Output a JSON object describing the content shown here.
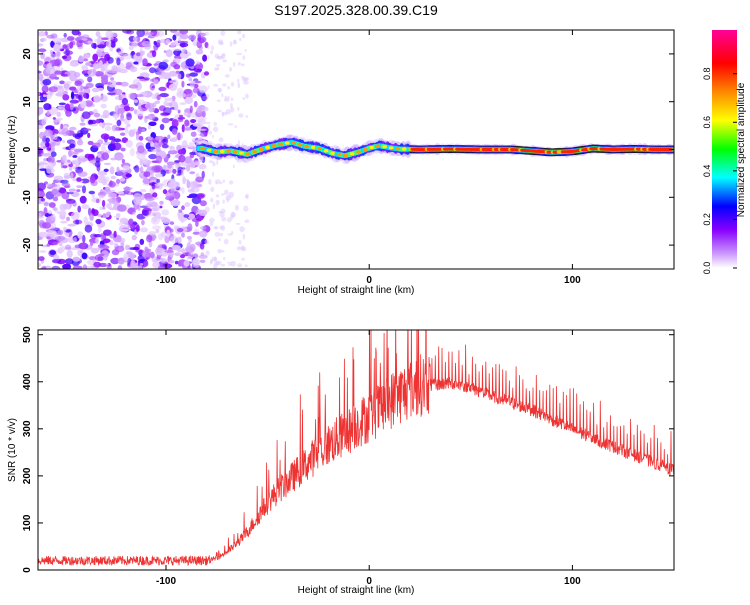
{
  "title": "S197.2025.328.00.39.C19",
  "chart_data": [
    {
      "type": "heatmap",
      "title": "S197.2025.328.00.39.C19",
      "xlabel": "Height of straight line (km)",
      "ylabel": "Frequency (Hz)",
      "xlim": [
        -163,
        150
      ],
      "ylim": [
        -25,
        25
      ],
      "xticks": [
        -100,
        0,
        100
      ],
      "yticks": [
        -20,
        -10,
        0,
        10,
        20
      ],
      "colorbar": {
        "label": "Normalized spectral amplitude",
        "range": [
          0,
          0.98
        ],
        "ticks": [
          0.0,
          0.2,
          0.4,
          0.6,
          0.8
        ],
        "tick_labels": [
          "0.0",
          "0.2",
          "0.4",
          "0.6",
          "0.8"
        ],
        "colormap": [
          "#ffffff",
          "#cc99ff",
          "#8800ff",
          "#0000ff",
          "#00ffff",
          "#00ff00",
          "#ffff00",
          "#ff8800",
          "#ff0000",
          "#ff0099"
        ]
      },
      "noise_region": {
        "x_range": [
          -163,
          -80
        ],
        "amplitude": [
          0.05,
          0.3
        ]
      },
      "ridge": {
        "x": [
          -82,
          -75,
          -68,
          -60,
          -52,
          -45,
          -38,
          -32,
          -25,
          -18,
          -12,
          -5,
          0,
          5,
          10,
          15,
          25,
          40,
          55,
          70,
          80,
          90,
          100,
          110,
          120,
          130,
          140,
          148
        ],
        "frequency": [
          0.2,
          -0.5,
          -0.3,
          -1.0,
          0.2,
          1.0,
          1.5,
          0.7,
          0.3,
          -0.8,
          -1.3,
          -0.5,
          0.3,
          0.8,
          0.4,
          0.1,
          0.0,
          0.1,
          0.0,
          0.0,
          -0.3,
          -0.6,
          -0.4,
          0.2,
          0.0,
          0.1,
          0.0,
          0.0
        ]
      }
    },
    {
      "type": "line",
      "xlabel": "Height of straight line (km)",
      "ylabel": "SNR (10 * v/v)",
      "xlim": [
        -163,
        150
      ],
      "ylim": [
        0,
        510
      ],
      "xticks": [
        -100,
        0,
        100
      ],
      "yticks": [
        0,
        100,
        200,
        300,
        400,
        500
      ],
      "series": [
        {
          "name": "SNR",
          "color": "#ee3333",
          "x": [
            -163,
            -140,
            -120,
            -100,
            -85,
            -80,
            -75,
            -70,
            -65,
            -60,
            -55,
            -50,
            -45,
            -40,
            -35,
            -30,
            -25,
            -20,
            -15,
            -10,
            -5,
            0,
            5,
            10,
            15,
            20,
            25,
            30,
            35,
            40,
            45,
            50,
            55,
            60,
            70,
            80,
            90,
            100,
            110,
            120,
            130,
            140,
            150
          ],
          "values": [
            20,
            20,
            20,
            20,
            20,
            20,
            25,
            38,
            55,
            80,
            110,
            140,
            165,
            185,
            205,
            225,
            245,
            262,
            276,
            290,
            308,
            320,
            335,
            352,
            366,
            378,
            386,
            392,
            395,
            397,
            394,
            387,
            378,
            370,
            355,
            340,
            320,
            300,
            280,
            262,
            245,
            228,
            210
          ]
        }
      ]
    }
  ]
}
